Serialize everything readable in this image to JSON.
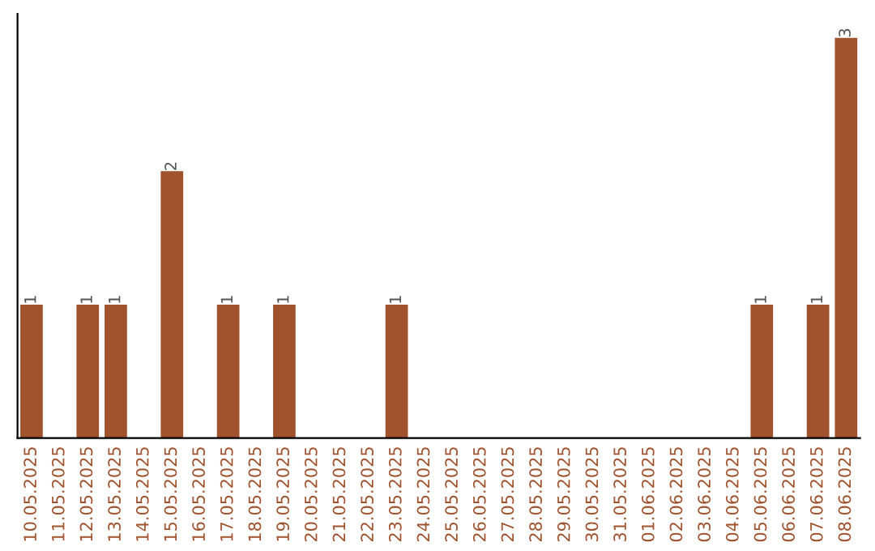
{
  "chart_data": {
    "type": "bar",
    "categories": [
      "10.05.2025",
      "11.05.2025",
      "12.05.2025",
      "13.05.2025",
      "14.05.2025",
      "15.05.2025",
      "16.05.2025",
      "17.05.2025",
      "18.05.2025",
      "19.05.2025",
      "20.05.2025",
      "21.05.2025",
      "22.05.2025",
      "23.05.2025",
      "24.05.2025",
      "25.05.2025",
      "26.05.2025",
      "27.05.2025",
      "28.05.2025",
      "29.05.2025",
      "30.05.2025",
      "31.05.2025",
      "01.06.2025",
      "02.06.2025",
      "03.06.2025",
      "04.06.2025",
      "05.06.2025",
      "06.06.2025",
      "07.06.2025",
      "08.06.2025"
    ],
    "values": [
      1,
      0,
      1,
      1,
      0,
      2,
      0,
      1,
      0,
      1,
      0,
      0,
      0,
      1,
      0,
      0,
      0,
      0,
      0,
      0,
      0,
      0,
      0,
      0,
      0,
      0,
      1,
      0,
      1,
      3
    ],
    "value_labels": [
      "1",
      null,
      "1",
      "1",
      null,
      "2",
      null,
      "1",
      null,
      "1",
      null,
      null,
      null,
      "1",
      null,
      null,
      null,
      null,
      null,
      null,
      null,
      null,
      null,
      null,
      null,
      null,
      "1",
      null,
      "1",
      "3"
    ],
    "color": "#a0522d",
    "tick_labels": "x",
    "grid": false,
    "legend": false
  }
}
